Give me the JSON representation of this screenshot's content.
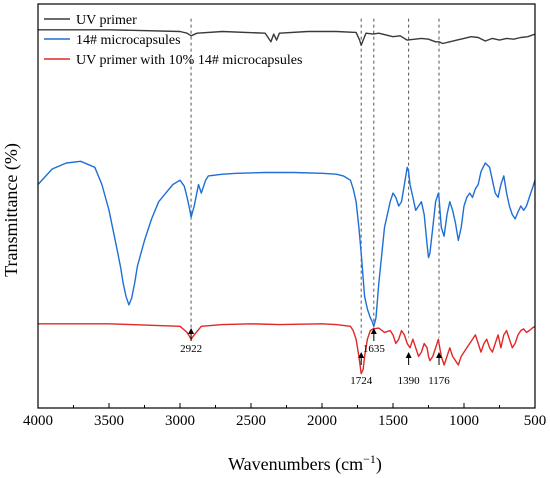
{
  "chart_data": {
    "type": "line",
    "xlabel": "Wavenumbers (cm",
    "xlabel_sup": "−1",
    "xlabel_close": ")",
    "ylabel": "Transmittance (%)",
    "xlim": [
      4000,
      500
    ],
    "x_reversed": true,
    "x_ticks": [
      4000,
      3500,
      3000,
      2500,
      2000,
      1500,
      1000,
      500
    ],
    "y_ticks_shown": false,
    "legend_position": "top-left",
    "series": [
      {
        "name": "UV primer",
        "color": "#3a3a3a",
        "x": [
          4000,
          3500,
          3000,
          2950,
          2922,
          2880,
          2700,
          2400,
          2360,
          2340,
          2320,
          2300,
          2100,
          1900,
          1760,
          1735,
          1724,
          1710,
          1690,
          1640,
          1600,
          1500,
          1450,
          1400,
          1300,
          1250,
          1200,
          1176,
          1150,
          1100,
          1050,
          1000,
          950,
          900,
          850,
          800,
          750,
          700,
          650,
          600,
          550,
          500
        ],
        "y": [
          100.0,
          100.0,
          99.8,
          99.6,
          99.3,
          99.6,
          99.8,
          99.6,
          98.6,
          99.5,
          98.8,
          99.6,
          99.8,
          99.8,
          99.7,
          98.8,
          98.2,
          98.8,
          99.6,
          99.5,
          99.6,
          99.2,
          99.3,
          98.8,
          99.0,
          98.9,
          98.6,
          98.6,
          98.4,
          98.6,
          98.8,
          99.0,
          99.2,
          99.1,
          98.7,
          99.0,
          98.8,
          99.0,
          98.9,
          99.1,
          99.2,
          99.5
        ]
      },
      {
        "name": "14# microcapsules",
        "color": "#1f6fd6",
        "x": [
          4000,
          3900,
          3800,
          3700,
          3600,
          3550,
          3500,
          3450,
          3420,
          3400,
          3380,
          3360,
          3340,
          3320,
          3300,
          3250,
          3200,
          3150,
          3100,
          3050,
          3000,
          2970,
          2950,
          2930,
          2922,
          2900,
          2870,
          2850,
          2820,
          2800,
          2700,
          2600,
          2400,
          2200,
          2000,
          1900,
          1850,
          1800,
          1780,
          1760,
          1740,
          1724,
          1710,
          1700,
          1680,
          1660,
          1645,
          1635,
          1620,
          1600,
          1560,
          1520,
          1500,
          1480,
          1460,
          1440,
          1420,
          1400,
          1390,
          1380,
          1360,
          1340,
          1320,
          1300,
          1280,
          1260,
          1250,
          1240,
          1220,
          1200,
          1180,
          1176,
          1160,
          1140,
          1120,
          1100,
          1080,
          1060,
          1040,
          1020,
          1000,
          980,
          960,
          940,
          920,
          900,
          880,
          850,
          820,
          800,
          780,
          760,
          740,
          720,
          700,
          680,
          660,
          640,
          620,
          600,
          580,
          560,
          540,
          520,
          500
        ],
        "y": [
          82.0,
          83.8,
          84.5,
          84.7,
          84.0,
          82.0,
          79.0,
          75.0,
          72.5,
          70.5,
          69.0,
          68.0,
          68.8,
          70.5,
          72.5,
          75.5,
          78.0,
          80.0,
          81.0,
          82.0,
          82.5,
          81.8,
          80.5,
          79.0,
          78.2,
          79.5,
          82.0,
          81.0,
          82.5,
          83.0,
          83.2,
          83.3,
          83.4,
          83.4,
          83.3,
          83.2,
          83.0,
          82.5,
          81.5,
          80.0,
          77.0,
          74.0,
          71.0,
          69.0,
          67.5,
          66.5,
          66.0,
          65.5,
          66.5,
          70.5,
          77.0,
          80.0,
          81.0,
          80.5,
          79.5,
          80.0,
          82.0,
          84.0,
          83.5,
          82.0,
          80.5,
          79.0,
          79.5,
          80.0,
          78.5,
          75.0,
          73.5,
          74.0,
          77.0,
          80.0,
          81.0,
          80.5,
          77.0,
          76.0,
          78.5,
          80.0,
          79.0,
          77.5,
          75.5,
          77.0,
          79.5,
          80.5,
          81.0,
          80.5,
          81.5,
          82.0,
          83.5,
          84.5,
          84.0,
          82.5,
          81.0,
          80.5,
          82.0,
          83.0,
          81.0,
          79.5,
          78.5,
          78.0,
          78.8,
          79.5,
          79.0,
          79.5,
          80.5,
          81.5,
          82.5
        ]
      },
      {
        "name": "UV primer with 10% 14# microcapsules",
        "color": "#e02828",
        "x": [
          4000,
          3500,
          3000,
          2950,
          2922,
          2900,
          2850,
          2700,
          2500,
          2300,
          2000,
          1900,
          1800,
          1780,
          1760,
          1740,
          1724,
          1710,
          1700,
          1680,
          1660,
          1640,
          1600,
          1560,
          1520,
          1500,
          1480,
          1460,
          1440,
          1420,
          1400,
          1380,
          1360,
          1340,
          1320,
          1300,
          1280,
          1260,
          1250,
          1240,
          1220,
          1200,
          1180,
          1176,
          1160,
          1140,
          1120,
          1100,
          1080,
          1060,
          1040,
          1020,
          1000,
          980,
          960,
          940,
          920,
          900,
          880,
          860,
          840,
          820,
          800,
          780,
          760,
          740,
          720,
          700,
          680,
          660,
          640,
          620,
          600,
          580,
          560,
          540,
          520,
          500
        ],
        "y": [
          65.8,
          65.8,
          65.5,
          64.8,
          64.0,
          64.5,
          65.5,
          65.7,
          65.8,
          65.7,
          65.8,
          65.7,
          65.5,
          65.0,
          64.0,
          62.0,
          60.0,
          60.5,
          62.0,
          64.0,
          65.0,
          65.2,
          65.3,
          64.8,
          65.0,
          64.5,
          63.5,
          64.0,
          65.0,
          64.5,
          63.5,
          63.0,
          64.0,
          63.0,
          62.0,
          62.5,
          63.5,
          63.0,
          62.0,
          61.5,
          62.0,
          63.0,
          64.0,
          63.5,
          62.0,
          61.0,
          62.0,
          63.0,
          62.0,
          61.5,
          61.0,
          62.0,
          62.5,
          63.0,
          63.5,
          64.0,
          64.5,
          63.5,
          62.5,
          63.5,
          64.0,
          63.0,
          62.5,
          63.5,
          64.5,
          63.0,
          64.5,
          65.0,
          64.0,
          63.0,
          63.5,
          64.5,
          65.0,
          65.2,
          64.8,
          65.0,
          65.3,
          65.5
        ]
      }
    ],
    "annotations": [
      {
        "label": "2922",
        "x": 2922,
        "position": "below-red"
      },
      {
        "label": "1724",
        "x": 1724,
        "position": "below-red-low"
      },
      {
        "label": "1635",
        "x": 1635,
        "position": "below-red"
      },
      {
        "label": "1390",
        "x": 1390,
        "position": "below-red-low"
      },
      {
        "label": "1176",
        "x": 1176,
        "position": "below-red-low"
      }
    ]
  }
}
